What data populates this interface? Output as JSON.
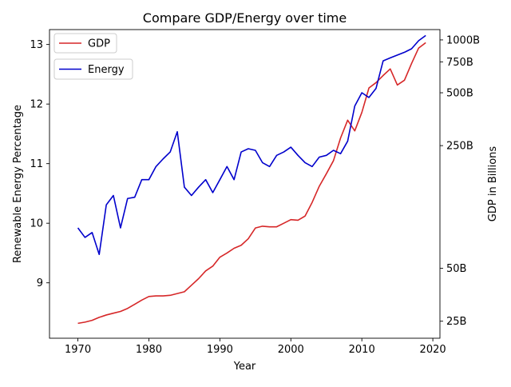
{
  "chart_data": {
    "type": "line",
    "title": "Compare GDP/Energy over time",
    "xlabel": "Year",
    "ylabel_left": "Renewable Energy Percentage",
    "ylabel_right": "GDP in Billions",
    "xlim": [
      1966,
      2021
    ],
    "ylim_left": [
      8.07,
      13.25
    ],
    "ylim_right": [
      20,
      1145
    ],
    "x_ticks": [
      1970,
      1980,
      1990,
      2000,
      2010,
      2020
    ],
    "x_tick_labels": [
      "1970",
      "1980",
      "1990",
      "2000",
      "2010",
      "2020"
    ],
    "y_left_ticks": [
      9,
      10,
      11,
      12,
      13
    ],
    "y_left_tick_labels": [
      "9",
      "10",
      "11",
      "12",
      "13"
    ],
    "y_right_ticks": [
      25,
      50,
      250,
      500,
      750,
      1000
    ],
    "y_right_tick_labels": [
      "25B",
      "50B",
      "250B",
      "500B",
      "750B",
      "1000B"
    ],
    "legend": [
      "GDP",
      "Energy"
    ],
    "legend_placement": "top-left",
    "grid": false,
    "series": [
      {
        "name": "GDP",
        "axis": "left",
        "color": "#d62728",
        "x": [
          1970,
          1971,
          1972,
          1973,
          1974,
          1975,
          1976,
          1977,
          1978,
          1979,
          1980,
          1981,
          1982,
          1983,
          1984,
          1985,
          1986,
          1987,
          1988,
          1989,
          1990,
          1991,
          1992,
          1993,
          1994,
          1995,
          1996,
          1997,
          1998,
          1999,
          2000,
          2001,
          2002,
          2003,
          2004,
          2005,
          2006,
          2007,
          2008,
          2009,
          2010,
          2011,
          2012,
          2013,
          2014,
          2015,
          2016,
          2017,
          2018,
          2019
        ],
        "values": [
          8.32,
          8.34,
          8.37,
          8.42,
          8.46,
          8.49,
          8.52,
          8.57,
          8.64,
          8.71,
          8.77,
          8.78,
          8.78,
          8.79,
          8.82,
          8.85,
          8.96,
          9.07,
          9.2,
          9.28,
          9.43,
          9.5,
          9.58,
          9.63,
          9.74,
          9.92,
          9.95,
          9.94,
          9.94,
          10.0,
          10.06,
          10.05,
          10.12,
          10.35,
          10.62,
          10.83,
          11.05,
          11.43,
          11.73,
          11.55,
          11.86,
          12.27,
          12.36,
          12.48,
          12.59,
          12.32,
          12.4,
          12.68,
          12.94,
          13.03
        ]
      },
      {
        "name": "Energy",
        "axis": "right",
        "color": "#0000cc",
        "x": [
          1970,
          1971,
          1972,
          1973,
          1974,
          1975,
          1976,
          1977,
          1978,
          1979,
          1980,
          1981,
          1982,
          1983,
          1984,
          1985,
          1986,
          1987,
          1988,
          1989,
          1990,
          1991,
          1992,
          1993,
          1994,
          1995,
          1996,
          1997,
          1998,
          1999,
          2000,
          2001,
          2002,
          2003,
          2004,
          2005,
          2006,
          2007,
          2008,
          2009,
          2010,
          2011,
          2012,
          2013,
          2014,
          2015,
          2016,
          2017,
          2018,
          2019
        ],
        "values": [
          85,
          75,
          80,
          60,
          115,
          130,
          85,
          125,
          127,
          160,
          160,
          190,
          210,
          230,
          300,
          145,
          130,
          145,
          160,
          135,
          160,
          190,
          160,
          230,
          240,
          235,
          200,
          190,
          220,
          230,
          245,
          220,
          200,
          190,
          215,
          220,
          235,
          225,
          265,
          420,
          500,
          470,
          530,
          760,
          790,
          820,
          850,
          890,
          990,
          1060
        ]
      }
    ]
  }
}
